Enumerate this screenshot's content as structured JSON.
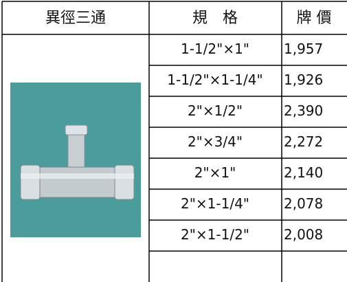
{
  "table": {
    "header": [
      "異徑三通",
      "規　格",
      "牌 價"
    ],
    "rows": [
      [
        "1-1/2\"×1\"",
        "1,957"
      ],
      [
        "1-1/2\"×1-1/4\"",
        "1,926"
      ],
      [
        "2\"×1/2\"",
        "2,390"
      ],
      [
        "2\"×3/4\"",
        "2,272"
      ],
      [
        "2\"×1\"",
        "2,140"
      ],
      [
        "2\"×1-1/4\"",
        "2,078"
      ],
      [
        "2\"×1-1/2\"",
        "2,008"
      ]
    ]
  }
}
